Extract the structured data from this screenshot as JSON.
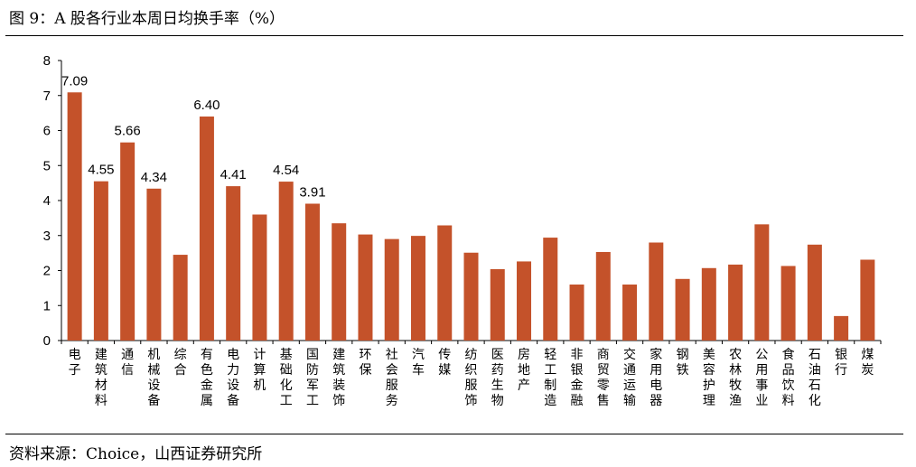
{
  "figure": {
    "title": "图 9：A 股各行业本周日均换手率（%）",
    "source": "资料来源：Choice，山西证券研究所"
  },
  "chart_data": {
    "type": "bar",
    "title": "图 9：A 股各行业本周日均换手率（%）",
    "xlabel": "",
    "ylabel": "",
    "ylim": [
      0,
      8
    ],
    "yticks": [
      "0",
      "1",
      "2",
      "3",
      "4",
      "5",
      "6",
      "7",
      "8"
    ],
    "grid": false,
    "legend": "none",
    "bar_color": "#C4522A",
    "categories": [
      "电子",
      "建筑材料",
      "通信",
      "机械设备",
      "综合",
      "有色金属",
      "电力设备",
      "计算机",
      "基础化工",
      "国防军工",
      "建筑装饰",
      "环保",
      "社会服务",
      "汽车",
      "传媒",
      "纺织服饰",
      "医药生物",
      "房地产",
      "轻工制造",
      "非银金融",
      "商贸零售",
      "交通运输",
      "家用电器",
      "钢铁",
      "美容护理",
      "农林牧渔",
      "公用事业",
      "食品饮料",
      "石油石化",
      "银行",
      "煤炭"
    ],
    "values": [
      7.09,
      4.55,
      5.66,
      4.34,
      2.45,
      6.4,
      4.41,
      3.6,
      4.54,
      3.91,
      3.35,
      3.03,
      2.9,
      2.99,
      3.29,
      2.51,
      2.04,
      2.26,
      2.94,
      1.6,
      2.53,
      1.6,
      2.8,
      1.76,
      2.07,
      2.17,
      3.32,
      2.13,
      2.74,
      0.7,
      2.31
    ],
    "data_labels": [
      "7.09",
      "4.55",
      "5.66",
      "4.34",
      "",
      "6.40",
      "4.41",
      "",
      "4.54",
      "3.91",
      "",
      "",
      "",
      "",
      "",
      "",
      "",
      "",
      "",
      "",
      "",
      "",
      "",
      "",
      "",
      "",
      "",
      "",
      "",
      "",
      ""
    ]
  }
}
